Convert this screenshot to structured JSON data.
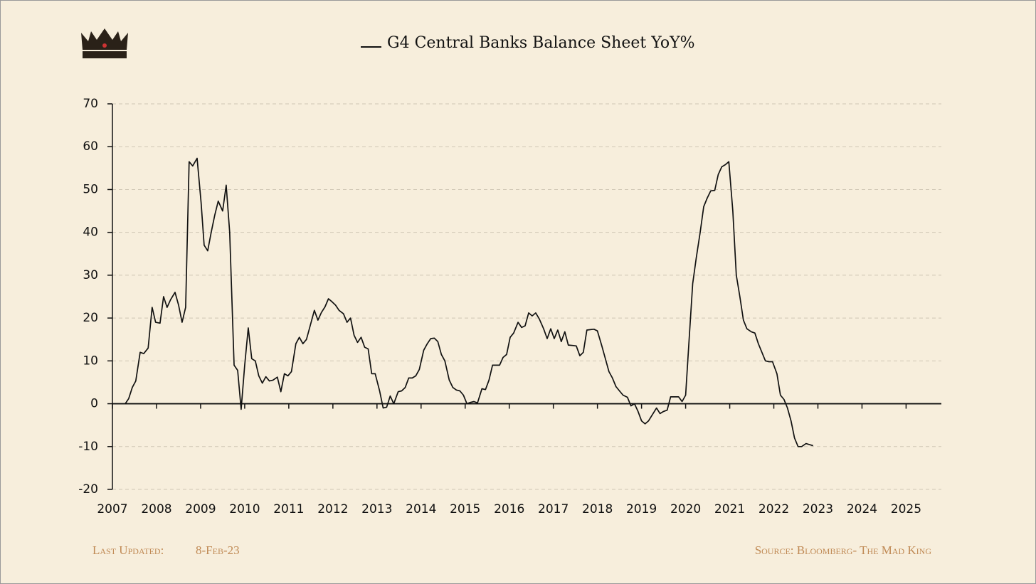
{
  "chart_data": {
    "type": "line",
    "legend": "top",
    "series": [
      {
        "name": "G4 Central Banks Balance Sheet YoY%",
        "color": "#111111",
        "values": [
          0,
          1.2,
          3.8,
          5.3,
          12,
          11.7,
          13,
          22.5,
          19,
          18.8,
          25,
          22.5,
          24.3,
          26,
          23,
          19,
          22.5,
          56.5,
          55.5,
          57.3,
          47,
          37,
          35.7,
          40,
          44,
          47.3,
          45,
          51,
          40,
          9,
          7.8,
          -1.3,
          9,
          17.7,
          10.5,
          10,
          6.5,
          4.8,
          6.3,
          5.3,
          5.5,
          6.2,
          2.8,
          7,
          6.5,
          7.5,
          14,
          15.5,
          14,
          15,
          18,
          21.8,
          19.5,
          21.3,
          22.6,
          24.5,
          23.8,
          23,
          21.8,
          21,
          19,
          20,
          16,
          14.3,
          15.5,
          13.2,
          12.8,
          7,
          7,
          3,
          -1,
          -0.8,
          1.8,
          0,
          2.8,
          3,
          3.8,
          6,
          6,
          6.5,
          8,
          12.5,
          14,
          15.2,
          15.3,
          14.5,
          11.5,
          10,
          5.5,
          3.8,
          3.2,
          3,
          2,
          0,
          0.3,
          0.5,
          0.2,
          3.5,
          3.3,
          5.5,
          9,
          9,
          9,
          10.8,
          11.5,
          15.5,
          16.5,
          19,
          17.8,
          18.2,
          21.2,
          20.5,
          21.2,
          19.8,
          17.5,
          15.2,
          17.5,
          15.2,
          17.2,
          14.5,
          16.8,
          13.7,
          13.6,
          13.5,
          11.2,
          12,
          17.2,
          17.3,
          17.4,
          17,
          13.5,
          10.5,
          7.5,
          6,
          4,
          3,
          2,
          1.5,
          -0.5,
          0,
          -1.8,
          -4,
          -4.7,
          -4,
          -2.5,
          -1,
          -2.3,
          -1.8,
          -1.5,
          1.6,
          1.6,
          1.6,
          0.5,
          2,
          15,
          28,
          34,
          40,
          46,
          48,
          49.7,
          49.8,
          53.5,
          55.3,
          55.8,
          56.5,
          45,
          30,
          25,
          19.5,
          17.5,
          16.8,
          16.5,
          14,
          12,
          10,
          9.8,
          9.8,
          7,
          2,
          1,
          -1,
          -4,
          -8,
          -10,
          -10,
          -9.3,
          -9.8
        ]
      }
    ],
    "x": [
      2007.29,
      2007.37,
      2007.45,
      2007.53,
      2007.63,
      2007.71,
      2007.81,
      2007.9,
      2007.98,
      2008.08,
      2008.16,
      2008.24,
      2008.32,
      2008.42,
      2008.5,
      2008.58,
      2008.66,
      2008.74,
      2008.82,
      2008.92,
      2009.01,
      2009.08,
      2009.16,
      2009.24,
      2009.32,
      2009.4,
      2009.5,
      2009.58,
      2009.66,
      2009.76,
      2009.84,
      2009.92,
      2010.0,
      2010.08,
      2010.16,
      2010.24,
      2010.32,
      2010.4,
      2010.48,
      2010.56,
      2010.64,
      2010.74,
      2010.82,
      2010.9,
      2010.98,
      2011.06,
      2011.16,
      2011.24,
      2011.32,
      2011.4,
      2011.48,
      2011.58,
      2011.66,
      2011.74,
      2011.82,
      2011.9,
      2011.98,
      2012.06,
      2012.14,
      2012.24,
      2012.32,
      2012.4,
      2012.48,
      2012.56,
      2012.64,
      2012.72,
      2012.8,
      2012.88,
      2012.96,
      2013.06,
      2013.14,
      2013.22,
      2013.3,
      2013.38,
      2013.48,
      2013.56,
      2013.64,
      2013.72,
      2013.8,
      2013.88,
      2013.96,
      2014.06,
      2014.14,
      2014.22,
      2014.3,
      2014.38,
      2014.46,
      2014.54,
      2014.64,
      2014.72,
      2014.8,
      2014.88,
      2014.96,
      2015.04,
      2015.12,
      2015.2,
      2015.28,
      2015.38,
      2015.46,
      2015.54,
      2015.62,
      2015.7,
      2015.78,
      2015.86,
      2015.94,
      2016.02,
      2016.1,
      2016.2,
      2016.28,
      2016.36,
      2016.44,
      2016.52,
      2016.6,
      2016.68,
      2016.78,
      2016.86,
      2016.94,
      2017.02,
      2017.1,
      2017.18,
      2017.26,
      2017.34,
      2017.44,
      2017.52,
      2017.6,
      2017.68,
      2017.76,
      2017.84,
      2017.92,
      2018.0,
      2018.1,
      2018.18,
      2018.26,
      2018.34,
      2018.42,
      2018.5,
      2018.58,
      2018.68,
      2018.76,
      2018.84,
      2018.92,
      2019.0,
      2019.08,
      2019.16,
      2019.25,
      2019.34,
      2019.42,
      2019.5,
      2019.58,
      2019.66,
      2019.75,
      2019.84,
      2019.92,
      2020.0,
      2020.08,
      2020.16,
      2020.24,
      2020.33,
      2020.41,
      2020.49,
      2020.57,
      2020.66,
      2020.74,
      2020.82,
      2020.9,
      2020.98,
      2021.07,
      2021.15,
      2021.23,
      2021.31,
      2021.39,
      2021.49,
      2021.57,
      2021.65,
      2021.73,
      2021.81,
      2021.89,
      2021.97,
      2022.07,
      2022.15,
      2022.23,
      2022.31,
      2022.39,
      2022.47,
      2022.55,
      2022.63,
      2022.73,
      2022.89
    ],
    "xlim": [
      2007,
      2025.8
    ],
    "xticks": [
      2007,
      2008,
      2009,
      2010,
      2011,
      2012,
      2013,
      2014,
      2015,
      2016,
      2017,
      2018,
      2019,
      2020,
      2021,
      2022,
      2023,
      2024,
      2025
    ],
    "ylim": [
      -20,
      70
    ],
    "yticks": [
      -20,
      -10,
      0,
      10,
      20,
      30,
      40,
      50,
      60,
      70
    ],
    "grid": true
  },
  "footer": {
    "updated_label": "Last Updated:",
    "updated": "8-Feb-23",
    "source": "Source: Bloomberg- The Mad King"
  }
}
